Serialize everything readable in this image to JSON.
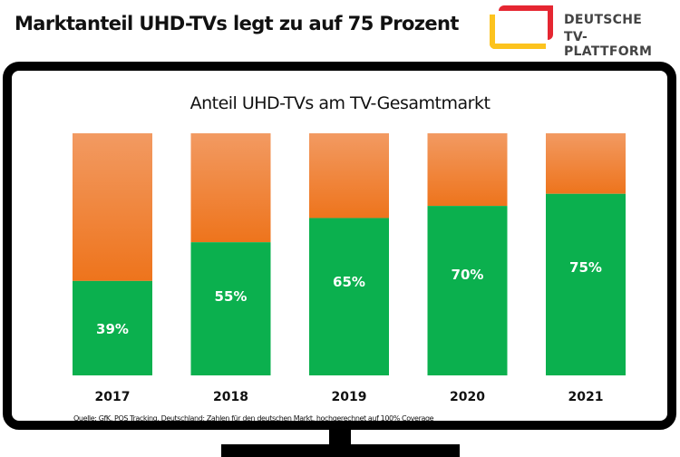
{
  "header": {
    "title": "Marktanteil UHD-TVs legt zu auf 75 Prozent"
  },
  "logo": {
    "line1": "DEUTSCHE",
    "line2": "TV-PLATTFORM"
  },
  "colors": {
    "uhd": "#0bb04e",
    "rest_top": "#f29a62",
    "rest_bottom": "#ee741c"
  },
  "chart_data": {
    "type": "bar",
    "stacked": true,
    "title": "Anteil UHD-TVs am TV-Gesamtmarkt",
    "categories": [
      "2017",
      "2018",
      "2019",
      "2020",
      "2021"
    ],
    "values": [
      39,
      55,
      65,
      70,
      75
    ],
    "data_labels": [
      "39%",
      "55%",
      "65%",
      "70%",
      "75%"
    ],
    "ylim": [
      0,
      100
    ],
    "grid": false
  },
  "source": "Quelle: GfK, POS Tracking, Deutschland; Zahlen für den deutschen Markt, hochgerechnet auf 100% Coverage"
}
